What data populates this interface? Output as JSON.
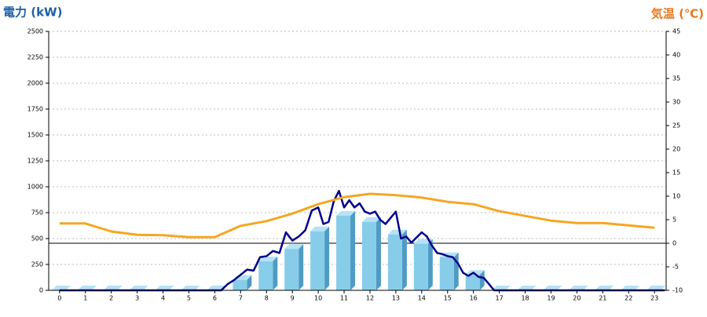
{
  "chart_data": {
    "type": "bar",
    "ylabel": "電力 (kW)",
    "y2label": "気温 (℃)",
    "xlim": [
      -0.42,
      23.45
    ],
    "xticks": [
      0,
      1,
      2,
      3,
      4,
      5,
      6,
      7,
      8,
      9,
      10,
      11,
      12,
      13,
      14,
      15,
      16,
      17,
      18,
      19,
      20,
      21,
      22,
      23
    ],
    "ylim": [
      0,
      2500
    ],
    "yticks": [
      0,
      250,
      500,
      750,
      1000,
      1250,
      1500,
      1750,
      2000,
      2250,
      2500
    ],
    "y2lim": [
      -10,
      45
    ],
    "y2ticks": [
      -10,
      -5,
      0,
      5,
      10,
      15,
      20,
      25,
      30,
      35,
      40,
      45
    ],
    "y2_reference": 0,
    "grid": true,
    "series": [
      {
        "type": "bar",
        "color": "#87cdea",
        "x": [
          0,
          1,
          2,
          3,
          4,
          5,
          6,
          7,
          8,
          9,
          10,
          11,
          12,
          13,
          14,
          15,
          16,
          17,
          18,
          19,
          20,
          21,
          22,
          23
        ],
        "values": [
          0,
          0,
          0,
          0,
          0,
          0,
          0,
          100,
          280,
          400,
          570,
          720,
          660,
          540,
          450,
          320,
          150,
          0,
          0,
          0,
          0,
          0,
          0,
          0
        ]
      },
      {
        "type": "line",
        "color": "#00008b",
        "x": [
          0,
          6.25,
          6.5,
          6.75,
          7,
          7.25,
          7.5,
          7.75,
          8,
          8.25,
          8.5,
          8.75,
          9,
          9.25,
          9.5,
          9.75,
          10,
          10.2,
          10.4,
          10.6,
          10.8,
          11,
          11.2,
          11.4,
          11.6,
          11.8,
          12,
          12.2,
          12.4,
          12.6,
          12.8,
          13,
          13.2,
          13.4,
          13.6,
          13.8,
          14,
          14.2,
          14.4,
          14.6,
          14.8,
          15,
          15.2,
          15.4,
          15.6,
          15.8,
          16,
          16.2,
          16.4,
          16.6,
          16.8,
          23.4
        ],
        "values": [
          0,
          0,
          60,
          100,
          150,
          200,
          190,
          320,
          330,
          380,
          360,
          560,
          480,
          520,
          580,
          770,
          800,
          640,
          660,
          860,
          960,
          800,
          870,
          800,
          840,
          760,
          740,
          760,
          680,
          640,
          700,
          760,
          500,
          520,
          460,
          510,
          560,
          520,
          430,
          360,
          350,
          330,
          320,
          260,
          170,
          140,
          170,
          130,
          120,
          60,
          0,
          0
        ]
      },
      {
        "type": "line",
        "axis": "y2",
        "color": "#f5a623",
        "x": [
          0,
          1,
          2,
          3,
          4,
          5,
          6,
          7,
          8,
          9,
          10,
          11,
          12,
          13,
          14,
          15,
          16,
          17,
          18,
          19,
          20,
          21,
          22,
          23
        ],
        "values": [
          4.2,
          4.2,
          2.5,
          1.8,
          1.7,
          1.3,
          1.3,
          3.7,
          4.7,
          6.3,
          8.3,
          9.8,
          10.5,
          10.2,
          9.7,
          8.8,
          8.3,
          6.8,
          5.8,
          4.8,
          4.3,
          4.3,
          3.8,
          3.3
        ]
      }
    ]
  }
}
